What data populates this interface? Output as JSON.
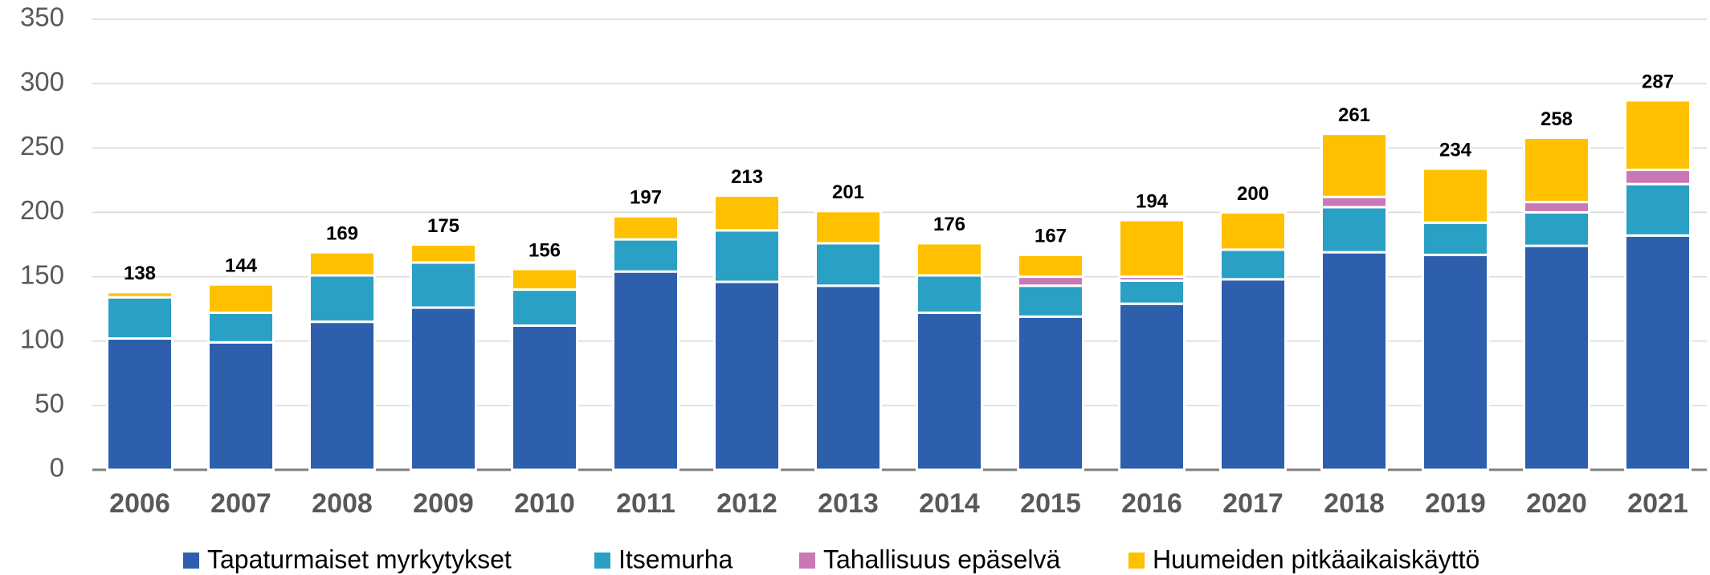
{
  "chart_data": {
    "type": "stacked_bar",
    "categories": [
      "2006",
      "2007",
      "2008",
      "2009",
      "2010",
      "2011",
      "2012",
      "2013",
      "2014",
      "2015",
      "2016",
      "2017",
      "2018",
      "2019",
      "2020",
      "2021"
    ],
    "series": [
      {
        "name": "Tapaturmaiset myrkytykset",
        "color": "#2e5fac",
        "values": [
          102,
          99,
          115,
          126,
          112,
          154,
          146,
          143,
          122,
          119,
          129,
          148,
          169,
          167,
          174,
          182
        ]
      },
      {
        "name": "Itsemurha",
        "color": "#2aa0c4",
        "values": [
          32,
          23,
          36,
          35,
          28,
          25,
          40,
          33,
          29,
          24,
          18,
          23,
          35,
          25,
          26,
          40
        ]
      },
      {
        "name": "Tahallisuus epäselvä",
        "color": "#c878b4",
        "values": [
          0,
          0,
          0,
          0,
          0,
          0,
          0,
          0,
          0,
          7,
          3,
          0,
          8,
          0,
          8,
          11
        ]
      },
      {
        "name": "Huumeiden pitkäaikaiskäyttö",
        "color": "#ffc000",
        "values": [
          4,
          22,
          18,
          14,
          16,
          18,
          27,
          25,
          25,
          17,
          44,
          29,
          49,
          42,
          50,
          54
        ]
      }
    ],
    "totals": [
      138,
      144,
      169,
      175,
      156,
      197,
      213,
      201,
      176,
      167,
      194,
      200,
      261,
      234,
      258,
      287
    ],
    "ylim": [
      0,
      350
    ],
    "yticks": [
      0,
      50,
      100,
      150,
      200,
      250,
      300,
      350
    ],
    "grid": true
  }
}
